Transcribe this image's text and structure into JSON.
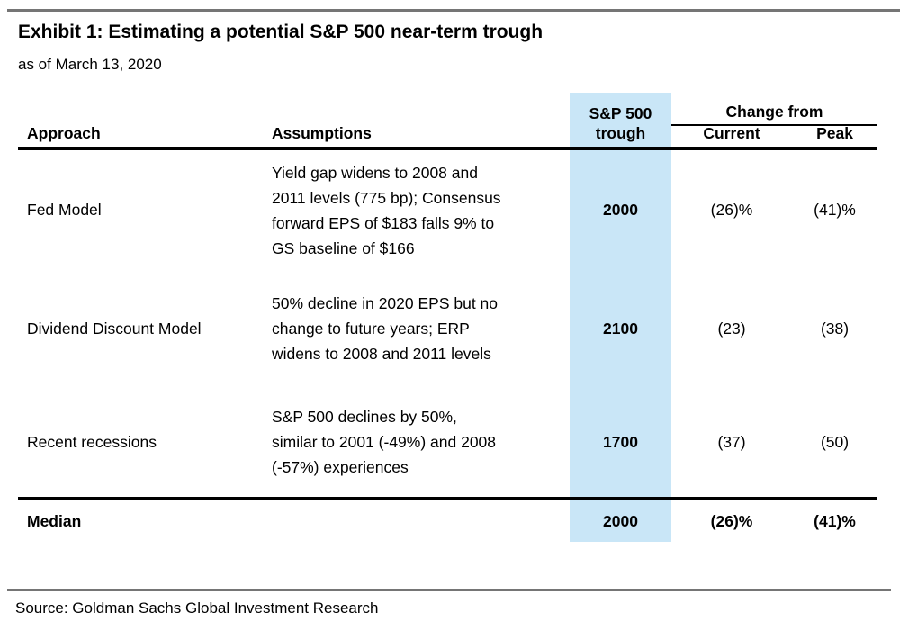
{
  "exhibit": {
    "title": "Exhibit 1: Estimating a potential S&P 500 near-term trough",
    "subtitle": "as of March 13, 2020",
    "source": "Source: Goldman Sachs Global Investment Research"
  },
  "colors": {
    "trough_highlight": "#C9E6F7",
    "divider_gray": "#757575",
    "rule_black": "#000000"
  },
  "table": {
    "col_headers": {
      "approach": "Approach",
      "assumptions": "Assumptions",
      "trough_line1": "S&P 500",
      "trough_line2": "trough",
      "change_group": "Change from",
      "current": "Current",
      "peak": "Peak"
    },
    "rows": [
      {
        "approach": "Fed Model",
        "assumptions_lines": [
          "Yield gap widens to 2008 and",
          "2011 levels (775 bp); Consensus",
          "forward EPS of $183 falls 9% to",
          "GS baseline of $166"
        ],
        "trough": "2000",
        "current": "(26)%",
        "peak": "(41)%"
      },
      {
        "approach": "Dividend Discount Model",
        "assumptions_lines": [
          "50% decline in 2020 EPS but no",
          "change to future years; ERP",
          "widens to 2008 and 2011 levels"
        ],
        "trough": "2100",
        "current": "(23)",
        "peak": "(38)"
      },
      {
        "approach": "Recent recessions",
        "assumptions_lines": [
          "S&P 500 declines by 50%,",
          "similar to 2001 (-49%) and 2008",
          "(-57%) experiences"
        ],
        "trough": "1700",
        "current": "(37)",
        "peak": "(50)"
      }
    ],
    "median": {
      "label": "Median",
      "trough": "2000",
      "current": "(26)%",
      "peak": "(41)%"
    }
  }
}
